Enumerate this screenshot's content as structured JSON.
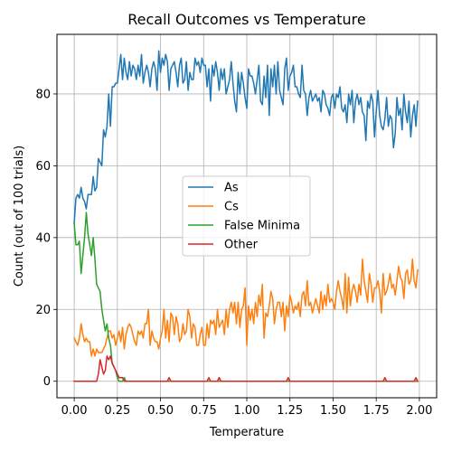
{
  "chart_data": {
    "type": "line",
    "title": "Recall Outcomes vs Temperature",
    "xlabel": "Temperature",
    "ylabel": "Count (out of 100 trials)",
    "xlim": [
      -0.1,
      2.1
    ],
    "ylim": [
      -4.6,
      96.6
    ],
    "xticks": [
      0.0,
      0.25,
      0.5,
      0.75,
      1.0,
      1.25,
      1.5,
      1.75,
      2.0
    ],
    "xtick_labels": [
      "0.00",
      "0.25",
      "0.50",
      "0.75",
      "1.00",
      "1.25",
      "1.50",
      "1.75",
      "2.00"
    ],
    "yticks": [
      0,
      20,
      40,
      60,
      80
    ],
    "ytick_labels": [
      "0",
      "20",
      "40",
      "60",
      "80"
    ],
    "grid": true,
    "legend_position": "center",
    "x": [
      0.0,
      0.01,
      0.02,
      0.03,
      0.04,
      0.05,
      0.06,
      0.07,
      0.08,
      0.09,
      0.1,
      0.11,
      0.12,
      0.13,
      0.14,
      0.15,
      0.16,
      0.17,
      0.18,
      0.19,
      0.2,
      0.21,
      0.22,
      0.23,
      0.24,
      0.25,
      0.26,
      0.27,
      0.28,
      0.29,
      0.3,
      0.31,
      0.32,
      0.33,
      0.34,
      0.35,
      0.36,
      0.37,
      0.38,
      0.39,
      0.4,
      0.41,
      0.42,
      0.43,
      0.44,
      0.45,
      0.46,
      0.47,
      0.48,
      0.49,
      0.5,
      0.51,
      0.52,
      0.53,
      0.54,
      0.55,
      0.56,
      0.57,
      0.58,
      0.59,
      0.6,
      0.61,
      0.62,
      0.63,
      0.64,
      0.65,
      0.66,
      0.67,
      0.68,
      0.69,
      0.7,
      0.71,
      0.72,
      0.73,
      0.74,
      0.75,
      0.76,
      0.77,
      0.78,
      0.79,
      0.8,
      0.81,
      0.82,
      0.83,
      0.84,
      0.85,
      0.86,
      0.87,
      0.88,
      0.89,
      0.9,
      0.91,
      0.92,
      0.93,
      0.94,
      0.95,
      0.96,
      0.97,
      0.98,
      0.99,
      1.0,
      1.01,
      1.02,
      1.03,
      1.04,
      1.05,
      1.06,
      1.07,
      1.08,
      1.09,
      1.1,
      1.11,
      1.12,
      1.13,
      1.14,
      1.15,
      1.16,
      1.17,
      1.18,
      1.19,
      1.2,
      1.21,
      1.22,
      1.23,
      1.24,
      1.25,
      1.26,
      1.27,
      1.28,
      1.29,
      1.3,
      1.31,
      1.32,
      1.33,
      1.34,
      1.35,
      1.36,
      1.37,
      1.38,
      1.39,
      1.4,
      1.41,
      1.42,
      1.43,
      1.44,
      1.45,
      1.46,
      1.47,
      1.48,
      1.49,
      1.5,
      1.51,
      1.52,
      1.53,
      1.54,
      1.55,
      1.56,
      1.57,
      1.58,
      1.59,
      1.6,
      1.61,
      1.62,
      1.63,
      1.64,
      1.65,
      1.66,
      1.67,
      1.68,
      1.69,
      1.7,
      1.71,
      1.72,
      1.73,
      1.74,
      1.75,
      1.76,
      1.77,
      1.78,
      1.79,
      1.8,
      1.81,
      1.82,
      1.83,
      1.84,
      1.85,
      1.86,
      1.87,
      1.88,
      1.89,
      1.9,
      1.91,
      1.92,
      1.93,
      1.94,
      1.95,
      1.96,
      1.97,
      1.98,
      1.99
    ],
    "series": [
      {
        "name": "As",
        "color": "#1f77b4",
        "values": [
          44,
          51,
          52,
          51,
          54,
          51,
          50,
          48,
          52,
          52,
          52,
          57,
          53,
          54,
          62,
          61,
          60,
          70,
          68,
          71,
          80,
          71,
          82,
          82,
          83,
          83,
          87,
          91,
          84,
          90,
          86,
          84,
          89,
          85,
          88,
          87,
          84,
          88,
          85,
          91,
          83,
          86,
          88,
          86,
          82,
          87,
          89,
          87,
          81,
          92,
          86,
          90,
          88,
          91,
          89,
          81,
          87,
          88,
          89,
          86,
          82,
          88,
          90,
          83,
          84,
          89,
          81,
          86,
          84,
          84,
          90,
          88,
          89,
          86,
          90,
          88,
          88,
          82,
          87,
          78,
          88,
          85,
          89,
          86,
          81,
          87,
          84,
          87,
          80,
          82,
          84,
          89,
          83,
          78,
          75,
          86,
          80,
          86,
          83,
          79,
          76,
          87,
          85,
          85,
          83,
          80,
          84,
          88,
          78,
          77,
          85,
          79,
          88,
          74,
          87,
          82,
          88,
          80,
          89,
          81,
          79,
          77,
          87,
          90,
          81,
          85,
          86,
          88,
          82,
          82,
          80,
          79,
          88,
          81,
          80,
          74,
          79,
          81,
          78,
          79,
          80,
          78,
          79,
          75,
          81,
          80,
          77,
          76,
          74,
          79,
          80,
          76,
          80,
          79,
          82,
          76,
          75,
          77,
          72,
          80,
          77,
          81,
          72,
          78,
          80,
          77,
          79,
          75,
          74,
          67,
          78,
          76,
          80,
          78,
          68,
          75,
          81,
          74,
          71,
          70,
          73,
          79,
          71,
          74,
          73,
          65,
          69,
          79,
          74,
          76,
          70,
          80,
          75,
          72,
          78,
          68,
          74,
          77,
          71,
          78
        ]
      },
      {
        "name": "Cs",
        "color": "#ff7f0e",
        "values": [
          12,
          11,
          10,
          12,
          16,
          13,
          11,
          12,
          11,
          11,
          7,
          9,
          7,
          9,
          8,
          8,
          8,
          9,
          10,
          12,
          14,
          14,
          12,
          13,
          10,
          12,
          14,
          11,
          15,
          9,
          13,
          15,
          16,
          15,
          13,
          11,
          10,
          14,
          13,
          14,
          12,
          16,
          16,
          20,
          10,
          14,
          12,
          11,
          11,
          9,
          12,
          14,
          20,
          12,
          17,
          11,
          19,
          18,
          13,
          18,
          16,
          11,
          12,
          16,
          13,
          14,
          20,
          18,
          12,
          16,
          15,
          10,
          10,
          13,
          15,
          10,
          10,
          16,
          12,
          17,
          16,
          17,
          13,
          20,
          15,
          16,
          17,
          13,
          20,
          15,
          20,
          22,
          19,
          22,
          16,
          22,
          15,
          20,
          21,
          26,
          10,
          21,
          17,
          20,
          16,
          22,
          18,
          24,
          21,
          27,
          12,
          19,
          18,
          21,
          25,
          23,
          16,
          20,
          22,
          22,
          18,
          22,
          14,
          21,
          18,
          24,
          22,
          19,
          21,
          20,
          22,
          18,
          24,
          25,
          21,
          28,
          21,
          22,
          19,
          21,
          23,
          21,
          19,
          25,
          20,
          24,
          21,
          27,
          22,
          23,
          22,
          20,
          25,
          28,
          25,
          23,
          20,
          30,
          19,
          29,
          21,
          25,
          27,
          25,
          22,
          27,
          24,
          34,
          28,
          25,
          22,
          30,
          27,
          22,
          26,
          26,
          28,
          25,
          19,
          30,
          24,
          25,
          27,
          30,
          26,
          27,
          24,
          28,
          32,
          29,
          28,
          23,
          30,
          31,
          27,
          28,
          34,
          28,
          26,
          31
        ]
      },
      {
        "name": "False Minima",
        "color": "#2ca02c",
        "values": [
          44,
          38,
          38,
          39,
          30,
          35,
          40,
          47,
          41,
          38,
          35,
          40,
          34,
          27,
          26,
          25,
          20,
          17,
          14,
          16,
          12,
          10,
          5,
          4,
          3,
          1,
          0,
          0,
          0,
          1,
          0,
          0,
          0,
          0,
          0,
          0,
          0,
          0,
          0,
          0,
          0,
          0,
          0,
          0,
          0,
          0,
          0,
          0,
          0,
          0,
          0,
          0,
          0,
          0,
          0,
          0,
          0,
          0,
          0,
          0,
          0,
          0,
          0,
          0,
          0,
          0,
          0,
          0,
          0,
          0,
          0,
          0,
          0,
          0,
          0,
          0,
          0,
          0,
          0,
          0,
          0,
          0,
          0,
          0,
          0,
          0,
          0,
          0,
          0,
          0,
          0,
          0,
          0,
          0,
          0,
          0,
          0,
          0,
          0,
          0,
          0,
          0,
          0,
          0,
          0,
          0,
          0,
          0,
          0,
          0,
          0,
          0,
          0,
          0,
          0,
          0,
          0,
          0,
          0,
          0,
          0,
          0,
          0,
          0,
          0,
          0,
          0,
          0,
          0,
          0,
          0,
          0,
          0,
          0,
          0,
          0,
          0,
          0,
          0,
          0,
          0,
          0,
          0,
          0,
          0,
          0,
          0,
          0,
          0,
          0,
          0,
          0,
          0,
          0,
          0,
          0,
          0,
          0,
          0,
          0,
          0,
          0,
          0,
          0,
          0,
          0,
          0,
          0,
          0,
          0,
          0,
          0,
          0,
          0,
          0,
          0,
          0,
          0,
          0,
          0,
          0,
          0,
          0,
          0,
          0,
          0,
          0,
          0,
          0,
          0,
          0,
          0,
          0,
          0,
          0,
          0,
          0,
          0,
          0,
          0
        ]
      },
      {
        "name": "Other",
        "color": "#d62728",
        "values": [
          0,
          0,
          0,
          0,
          0,
          0,
          0,
          0,
          0,
          0,
          0,
          0,
          0,
          0,
          2,
          6,
          4,
          2,
          3,
          7,
          6,
          7,
          5,
          4,
          3,
          2,
          1,
          1,
          1,
          0,
          0,
          0,
          0,
          0,
          0,
          0,
          0,
          0,
          0,
          0,
          0,
          0,
          0,
          0,
          0,
          0,
          0,
          0,
          0,
          0,
          0,
          0,
          0,
          0,
          0,
          1,
          0,
          0,
          0,
          0,
          0,
          0,
          0,
          0,
          0,
          0,
          0,
          0,
          0,
          0,
          0,
          0,
          0,
          0,
          0,
          0,
          0,
          0,
          1,
          0,
          0,
          0,
          0,
          0,
          1,
          0,
          0,
          0,
          0,
          0,
          0,
          0,
          0,
          0,
          0,
          0,
          0,
          0,
          0,
          0,
          0,
          0,
          0,
          0,
          0,
          0,
          0,
          0,
          0,
          0,
          0,
          0,
          0,
          0,
          0,
          0,
          0,
          0,
          0,
          0,
          0,
          0,
          0,
          0,
          1,
          0,
          0,
          0,
          0,
          0,
          0,
          0,
          0,
          0,
          0,
          0,
          0,
          0,
          0,
          0,
          0,
          0,
          0,
          0,
          0,
          0,
          0,
          0,
          0,
          0,
          0,
          0,
          0,
          0,
          0,
          0,
          0,
          0,
          0,
          0,
          0,
          0,
          0,
          0,
          0,
          0,
          0,
          0,
          0,
          0,
          0,
          0,
          0,
          0,
          0,
          0,
          0,
          0,
          0,
          0,
          1,
          0,
          0,
          0,
          0,
          0,
          0,
          0,
          0,
          0,
          0,
          0,
          0,
          0,
          0,
          0,
          0,
          0,
          1,
          0
        ]
      }
    ]
  }
}
